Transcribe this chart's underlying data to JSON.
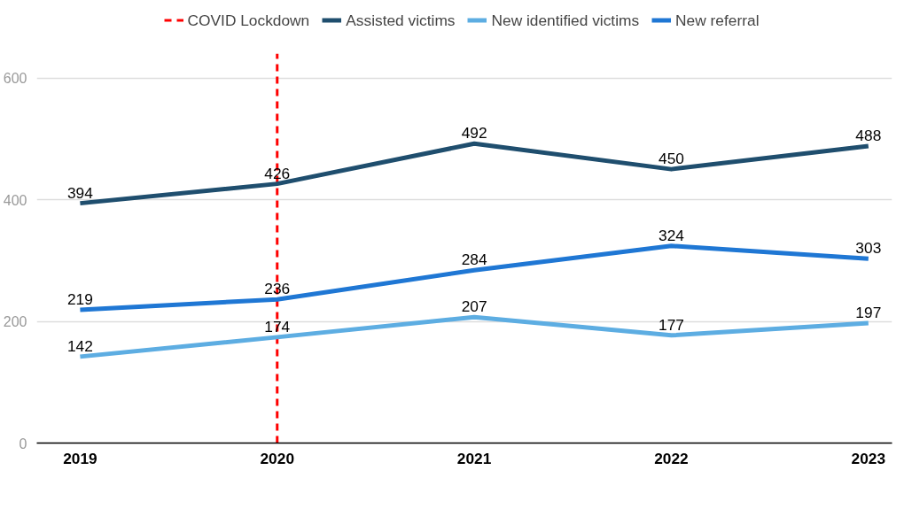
{
  "chart_data": {
    "type": "line",
    "categories": [
      "2019",
      "2020",
      "2021",
      "2022",
      "2023"
    ],
    "series": [
      {
        "name": "Assisted victims",
        "color": "#1f4e6e",
        "values": [
          394,
          426,
          492,
          450,
          488
        ]
      },
      {
        "name": "New identified victims",
        "color": "#5dade2",
        "values": [
          142,
          174,
          207,
          177,
          197
        ]
      },
      {
        "name": "New referral",
        "color": "#1f77d4",
        "values": [
          219,
          236,
          284,
          324,
          303
        ]
      }
    ],
    "ylim": [
      0,
      640
    ],
    "yticks": [
      0,
      200,
      400,
      600
    ],
    "grid": "y",
    "legend": "top",
    "data_labels": true,
    "line_style": "solid",
    "marker": "none",
    "ref_lines": [
      {
        "axis": "x",
        "value": "2020",
        "label": "COVID Lockdown",
        "color": "#ff0000",
        "line_style": "dashed"
      }
    ]
  }
}
